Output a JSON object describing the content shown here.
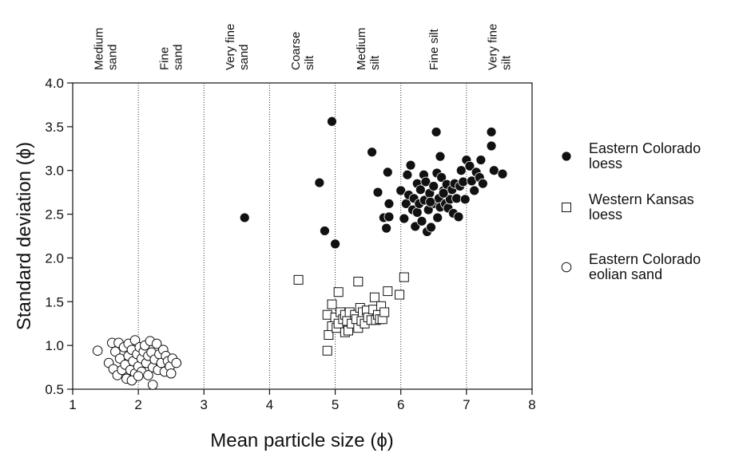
{
  "chart_data": {
    "type": "scatter",
    "xlabel": "Mean particle size (ϕ)",
    "ylabel": "Standard deviation (ϕ)",
    "xlim": [
      1,
      8
    ],
    "ylim": [
      0.5,
      4.0
    ],
    "x_ticks": [
      "1",
      "2",
      "3",
      "4",
      "5",
      "6",
      "7",
      "8"
    ],
    "y_ticks": [
      "0.5",
      "1.0",
      "1.5",
      "2.0",
      "2.5",
      "3.0",
      "3.5",
      "4.0"
    ],
    "grid": "vertical dotted lines at x = 2, 3, 4, 5, 6, 7",
    "legend_position": "right",
    "size_classes": [
      {
        "lines": [
          "Medium",
          "sand"
        ],
        "x": 1.5
      },
      {
        "lines": [
          "Fine",
          "sand"
        ],
        "x": 2.5
      },
      {
        "lines": [
          "Very fine",
          "sand"
        ],
        "x": 3.5
      },
      {
        "lines": [
          "Coarse",
          "silt"
        ],
        "x": 4.5
      },
      {
        "lines": [
          "Medium",
          "silt"
        ],
        "x": 5.5
      },
      {
        "lines": [
          "Fine silt"
        ],
        "x": 6.5
      },
      {
        "lines": [
          "Very fine",
          "silt"
        ],
        "x": 7.5
      }
    ],
    "series": [
      {
        "name": "Eastern Colorado loess",
        "legend_lines": [
          "Eastern Colorado",
          "loess"
        ],
        "marker": "filled-circle",
        "color": "#111111",
        "points": [
          [
            3.62,
            2.46
          ],
          [
            4.76,
            2.86
          ],
          [
            4.84,
            2.31
          ],
          [
            4.95,
            3.56
          ],
          [
            5.0,
            2.16
          ],
          [
            5.56,
            3.21
          ],
          [
            5.65,
            2.75
          ],
          [
            5.74,
            2.46
          ],
          [
            5.78,
            2.34
          ],
          [
            5.8,
            2.98
          ],
          [
            5.82,
            2.62
          ],
          [
            5.82,
            2.47
          ],
          [
            6.0,
            2.77
          ],
          [
            6.05,
            2.45
          ],
          [
            6.08,
            2.62
          ],
          [
            6.1,
            2.95
          ],
          [
            6.12,
            2.72
          ],
          [
            6.15,
            3.06
          ],
          [
            6.18,
            2.55
          ],
          [
            6.2,
            2.68
          ],
          [
            6.22,
            2.36
          ],
          [
            6.25,
            2.85
          ],
          [
            6.25,
            2.52
          ],
          [
            6.28,
            2.62
          ],
          [
            6.3,
            2.78
          ],
          [
            6.32,
            2.42
          ],
          [
            6.35,
            2.95
          ],
          [
            6.36,
            2.66
          ],
          [
            6.38,
            2.87
          ],
          [
            6.4,
            2.3
          ],
          [
            6.42,
            2.55
          ],
          [
            6.44,
            2.74
          ],
          [
            6.46,
            2.35
          ],
          [
            6.5,
            2.82
          ],
          [
            6.52,
            2.62
          ],
          [
            6.54,
            3.44
          ],
          [
            6.55,
            2.97
          ],
          [
            6.56,
            2.46
          ],
          [
            6.58,
            2.68
          ],
          [
            6.6,
            3.16
          ],
          [
            6.6,
            2.58
          ],
          [
            6.62,
            2.92
          ],
          [
            6.65,
            2.77
          ],
          [
            6.68,
            2.62
          ],
          [
            6.7,
            2.84
          ],
          [
            6.72,
            2.57
          ],
          [
            6.75,
            2.67
          ],
          [
            6.78,
            2.78
          ],
          [
            6.8,
            2.51
          ],
          [
            6.82,
            2.85
          ],
          [
            6.85,
            2.68
          ],
          [
            6.88,
            2.47
          ],
          [
            6.9,
            2.82
          ],
          [
            6.92,
            3.0
          ],
          [
            6.95,
            2.87
          ],
          [
            6.98,
            2.67
          ],
          [
            7.0,
            3.12
          ],
          [
            7.05,
            3.05
          ],
          [
            7.08,
            2.88
          ],
          [
            7.12,
            2.77
          ],
          [
            7.15,
            2.98
          ],
          [
            7.2,
            2.92
          ],
          [
            7.22,
            3.12
          ],
          [
            7.25,
            2.85
          ],
          [
            7.38,
            3.44
          ],
          [
            7.38,
            3.28
          ],
          [
            7.42,
            3.0
          ],
          [
            7.55,
            2.96
          ],
          [
            6.45,
            2.64
          ],
          [
            6.65,
            2.74
          ]
        ]
      },
      {
        "name": "Western Kansas loess",
        "legend_lines": [
          "Western Kansas",
          "loess"
        ],
        "marker": "open-square",
        "color": "#111111",
        "points": [
          [
            4.44,
            1.75
          ],
          [
            4.88,
            0.94
          ],
          [
            4.9,
            1.12
          ],
          [
            4.88,
            1.35
          ],
          [
            4.95,
            1.47
          ],
          [
            4.95,
            1.22
          ],
          [
            5.0,
            1.32
          ],
          [
            5.02,
            1.2
          ],
          [
            5.05,
            1.25
          ],
          [
            5.05,
            1.61
          ],
          [
            5.08,
            1.38
          ],
          [
            5.12,
            1.3
          ],
          [
            5.15,
            1.15
          ],
          [
            5.15,
            1.35
          ],
          [
            5.18,
            1.28
          ],
          [
            5.2,
            1.17
          ],
          [
            5.22,
            1.38
          ],
          [
            5.25,
            1.25
          ],
          [
            5.3,
            1.35
          ],
          [
            5.32,
            1.3
          ],
          [
            5.35,
            1.73
          ],
          [
            5.35,
            1.2
          ],
          [
            5.38,
            1.43
          ],
          [
            5.4,
            1.28
          ],
          [
            5.42,
            1.38
          ],
          [
            5.45,
            1.25
          ],
          [
            5.48,
            1.4
          ],
          [
            5.5,
            1.32
          ],
          [
            5.55,
            1.29
          ],
          [
            5.58,
            1.41
          ],
          [
            5.6,
            1.55
          ],
          [
            5.62,
            1.29
          ],
          [
            5.65,
            1.35
          ],
          [
            5.68,
            1.3
          ],
          [
            5.7,
            1.45
          ],
          [
            5.72,
            1.3
          ],
          [
            5.75,
            1.38
          ],
          [
            5.8,
            1.62
          ],
          [
            5.98,
            1.58
          ],
          [
            6.05,
            1.78
          ]
        ]
      },
      {
        "name": "Eastern Colorado eolian sand",
        "legend_lines": [
          "Eastern Colorado",
          "eolian sand"
        ],
        "marker": "open-circle",
        "color": "#111111",
        "points": [
          [
            1.38,
            0.94
          ],
          [
            1.55,
            0.8
          ],
          [
            1.6,
            1.03
          ],
          [
            1.62,
            0.73
          ],
          [
            1.65,
            0.93
          ],
          [
            1.68,
            0.66
          ],
          [
            1.7,
            1.03
          ],
          [
            1.72,
            0.85
          ],
          [
            1.75,
            0.72
          ],
          [
            1.78,
            0.98
          ],
          [
            1.8,
            0.78
          ],
          [
            1.82,
            0.62
          ],
          [
            1.85,
            1.02
          ],
          [
            1.85,
            0.88
          ],
          [
            1.88,
            0.72
          ],
          [
            1.9,
            0.95
          ],
          [
            1.92,
            0.82
          ],
          [
            1.95,
            1.06
          ],
          [
            1.95,
            0.68
          ],
          [
            1.98,
            0.9
          ],
          [
            2.0,
            0.76
          ],
          [
            2.02,
            0.98
          ],
          [
            2.05,
            0.85
          ],
          [
            2.05,
            0.7
          ],
          [
            2.08,
            0.93
          ],
          [
            2.1,
            1.0
          ],
          [
            2.12,
            0.8
          ],
          [
            2.15,
            0.88
          ],
          [
            2.15,
            0.66
          ],
          [
            2.18,
            1.05
          ],
          [
            2.2,
            0.92
          ],
          [
            2.22,
            0.75
          ],
          [
            2.22,
            0.55
          ],
          [
            2.25,
            0.84
          ],
          [
            2.28,
            1.02
          ],
          [
            2.3,
            0.72
          ],
          [
            2.32,
            0.9
          ],
          [
            2.35,
            0.8
          ],
          [
            2.38,
            0.95
          ],
          [
            2.4,
            0.7
          ],
          [
            2.42,
            0.88
          ],
          [
            2.45,
            0.82
          ],
          [
            2.48,
            0.76
          ],
          [
            2.5,
            0.68
          ],
          [
            2.52,
            0.85
          ],
          [
            2.58,
            0.8
          ],
          [
            1.9,
            0.6
          ],
          [
            2.0,
            0.65
          ]
        ]
      }
    ]
  }
}
